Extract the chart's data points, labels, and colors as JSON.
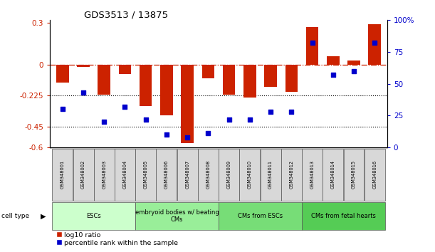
{
  "title": "GDS3513 / 13875",
  "samples": [
    "GSM348001",
    "GSM348002",
    "GSM348003",
    "GSM348004",
    "GSM348005",
    "GSM348006",
    "GSM348007",
    "GSM348008",
    "GSM348009",
    "GSM348010",
    "GSM348011",
    "GSM348012",
    "GSM348013",
    "GSM348014",
    "GSM348015",
    "GSM348016"
  ],
  "log10_ratio": [
    -0.13,
    -0.02,
    -0.22,
    -0.07,
    -0.3,
    -0.37,
    -0.57,
    -0.1,
    -0.22,
    -0.24,
    -0.16,
    -0.2,
    0.27,
    0.06,
    0.03,
    0.29
  ],
  "percentile_rank": [
    30,
    43,
    20,
    32,
    22,
    10,
    8,
    11,
    22,
    22,
    28,
    28,
    82,
    57,
    60,
    82
  ],
  "bar_color": "#cc2200",
  "dot_color": "#0000cc",
  "ylim_left": [
    -0.6,
    0.32
  ],
  "ylim_right": [
    0,
    100
  ],
  "yticks_left": [
    0.3,
    0.0,
    -0.225,
    -0.45,
    -0.6
  ],
  "yticks_right": [
    100,
    75,
    50,
    25,
    0
  ],
  "dotted_lines": [
    -0.225,
    -0.45
  ],
  "cell_groups": [
    {
      "label": "ESCs",
      "start": 0,
      "end": 3,
      "color": "#ccffcc"
    },
    {
      "label": "embryoid bodies w/ beating\nCMs",
      "start": 4,
      "end": 7,
      "color": "#99ee99"
    },
    {
      "label": "CMs from ESCs",
      "start": 8,
      "end": 11,
      "color": "#77dd77"
    },
    {
      "label": "CMs from fetal hearts",
      "start": 12,
      "end": 15,
      "color": "#55cc55"
    }
  ],
  "legend_red": "log10 ratio",
  "legend_blue": "percentile rank within the sample",
  "bar_width": 0.6,
  "fig_bg": "#ffffff"
}
